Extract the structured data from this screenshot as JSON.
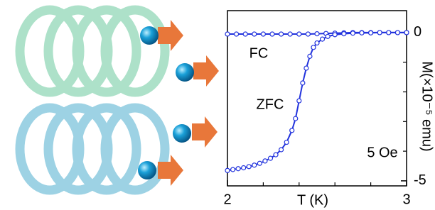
{
  "chart_data": {
    "type": "line",
    "xlabel": "T (K)",
    "ylabel": "M(×10⁻⁵ emu)",
    "xlim": [
      2,
      3
    ],
    "xticks": [
      2,
      3
    ],
    "xminorticks": [
      2.2,
      2.4,
      2.6,
      2.8
    ],
    "ylim": [
      -5.17,
      0.74
    ],
    "yticks": [
      0,
      -5
    ],
    "yminorticks": [
      -1,
      -2,
      -3,
      -4
    ],
    "annotations": [
      "FC",
      "ZFC",
      "5 Oe"
    ],
    "series": [
      {
        "name": "FC",
        "color": "#2233dd",
        "x": [
          2.0,
          2.05,
          2.1,
          2.15,
          2.2,
          2.25,
          2.3,
          2.35,
          2.4,
          2.45,
          2.5,
          2.55,
          2.6,
          2.65,
          2.7,
          2.75,
          2.8,
          2.85,
          2.9,
          2.95,
          3.0
        ],
        "values": [
          -0.05,
          -0.05,
          -0.05,
          -0.05,
          -0.05,
          -0.05,
          -0.05,
          -0.05,
          -0.05,
          -0.05,
          -0.04,
          -0.03,
          -0.02,
          -0.01,
          0,
          0,
          0,
          0,
          0,
          0,
          0
        ]
      },
      {
        "name": "ZFC",
        "color": "#2233dd",
        "x": [
          2.0,
          2.03,
          2.06,
          2.09,
          2.12,
          2.15,
          2.18,
          2.21,
          2.24,
          2.27,
          2.3,
          2.33,
          2.36,
          2.38,
          2.4,
          2.42,
          2.44,
          2.46,
          2.48,
          2.5,
          2.53,
          2.56,
          2.6,
          2.65,
          2.7,
          2.75,
          2.8,
          2.85,
          2.9,
          2.95,
          3.0
        ],
        "values": [
          -4.65,
          -4.62,
          -4.59,
          -4.56,
          -4.52,
          -4.47,
          -4.41,
          -4.33,
          -4.24,
          -4.12,
          -3.95,
          -3.7,
          -3.3,
          -2.9,
          -2.3,
          -1.7,
          -1.2,
          -0.8,
          -0.5,
          -0.35,
          -0.22,
          -0.13,
          -0.07,
          -0.04,
          -0.02,
          -0.01,
          -0.01,
          0,
          0,
          0,
          0
        ]
      }
    ]
  }
}
